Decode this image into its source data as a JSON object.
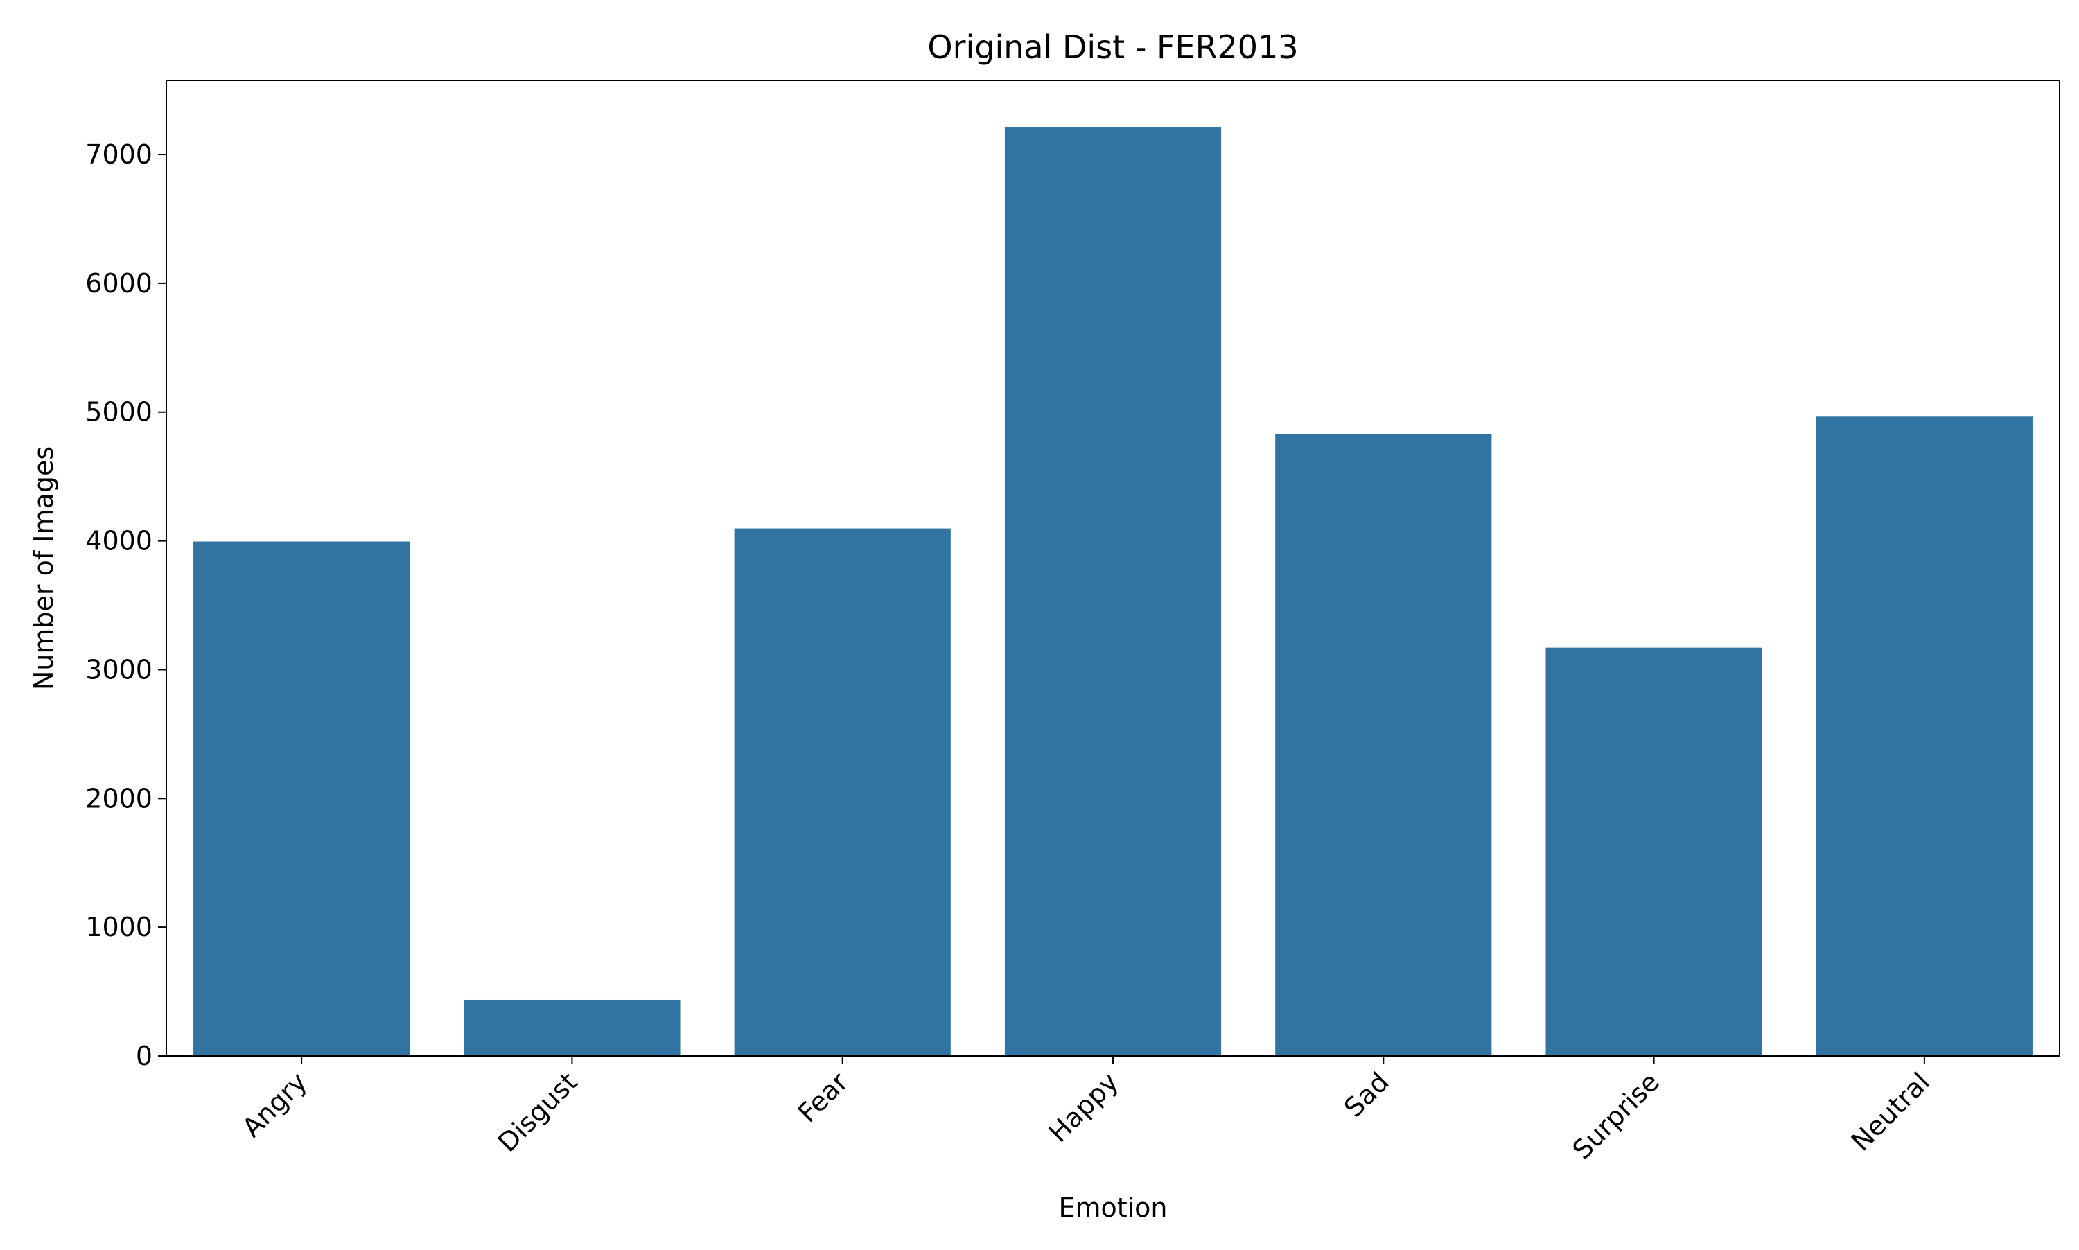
{
  "chart_data": {
    "type": "bar",
    "title": "Original Dist - FER2013",
    "xlabel": "Emotion",
    "ylabel": "Number of Images",
    "categories": [
      "Angry",
      "Disgust",
      "Fear",
      "Happy",
      "Sad",
      "Surprise",
      "Neutral"
    ],
    "values": [
      3995,
      436,
      4097,
      7215,
      4830,
      3171,
      4965
    ],
    "ylim": [
      0,
      7576
    ],
    "yticks": [
      0,
      1000,
      2000,
      3000,
      4000,
      5000,
      6000,
      7000
    ],
    "ytick_labels": [
      "0",
      "1000",
      "2000",
      "3000",
      "4000",
      "5000",
      "6000",
      "7000"
    ],
    "grid": false,
    "legend": "none",
    "bar_color": "#3274a1",
    "xtick_rotation": "45 degrees"
  }
}
